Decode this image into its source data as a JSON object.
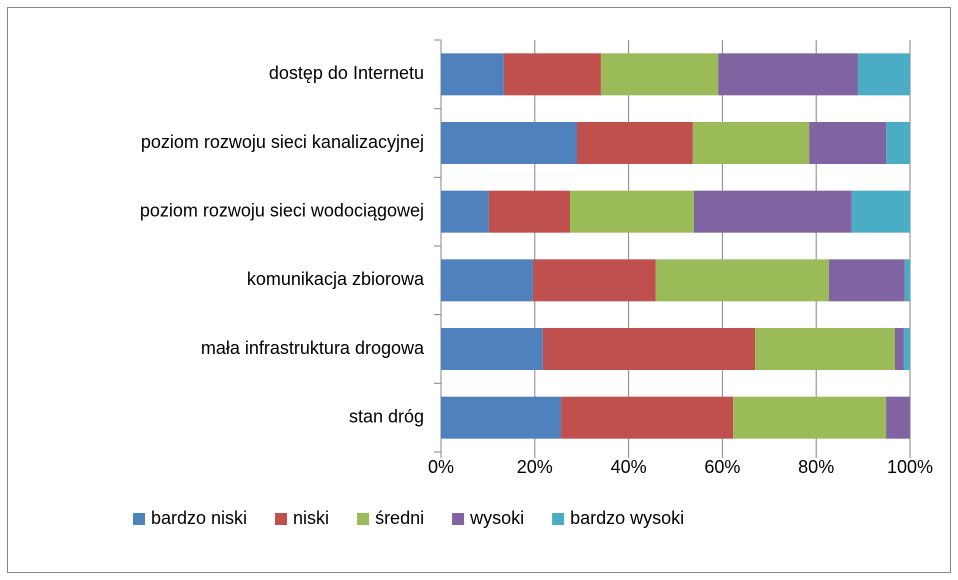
{
  "chart_data": {
    "type": "stacked-barh",
    "categories": [
      "dostęp do Internetu",
      "poziom rozwoju sieci kanalizacyjnej",
      "poziom rozwoju sieci wodociągowej",
      "komunikacja zbiorowa",
      "mała infrastruktura drogowa",
      "stan dróg"
    ],
    "series": [
      {
        "name": "bardzo niski",
        "color": "#4f81bd",
        "values": [
          13.4,
          29.0,
          10.2,
          19.6,
          21.7,
          25.6
        ]
      },
      {
        "name": "niski",
        "color": "#c0504d",
        "values": [
          20.7,
          24.7,
          17.3,
          26.2,
          45.3,
          36.7
        ]
      },
      {
        "name": "średni",
        "color": "#9bbb59",
        "values": [
          25.0,
          24.8,
          26.4,
          36.9,
          29.8,
          32.6
        ]
      },
      {
        "name": "wysoki",
        "color": "#8064a2",
        "values": [
          29.8,
          16.4,
          33.7,
          16.2,
          1.9,
          5.1
        ]
      },
      {
        "name": "bardzo wysoki",
        "color": "#4bacc6",
        "values": [
          11.1,
          5.1,
          12.4,
          1.1,
          1.3,
          0
        ]
      }
    ],
    "xlim": [
      0,
      100
    ],
    "xticks": [
      {
        "value": 0,
        "label": "0%"
      },
      {
        "value": 20,
        "label": "20%"
      },
      {
        "value": 40,
        "label": "40%"
      },
      {
        "value": 60,
        "label": "60%"
      },
      {
        "value": 80,
        "label": "80%"
      },
      {
        "value": 100,
        "label": "100%"
      }
    ],
    "grid": true,
    "legend": "bottom"
  }
}
